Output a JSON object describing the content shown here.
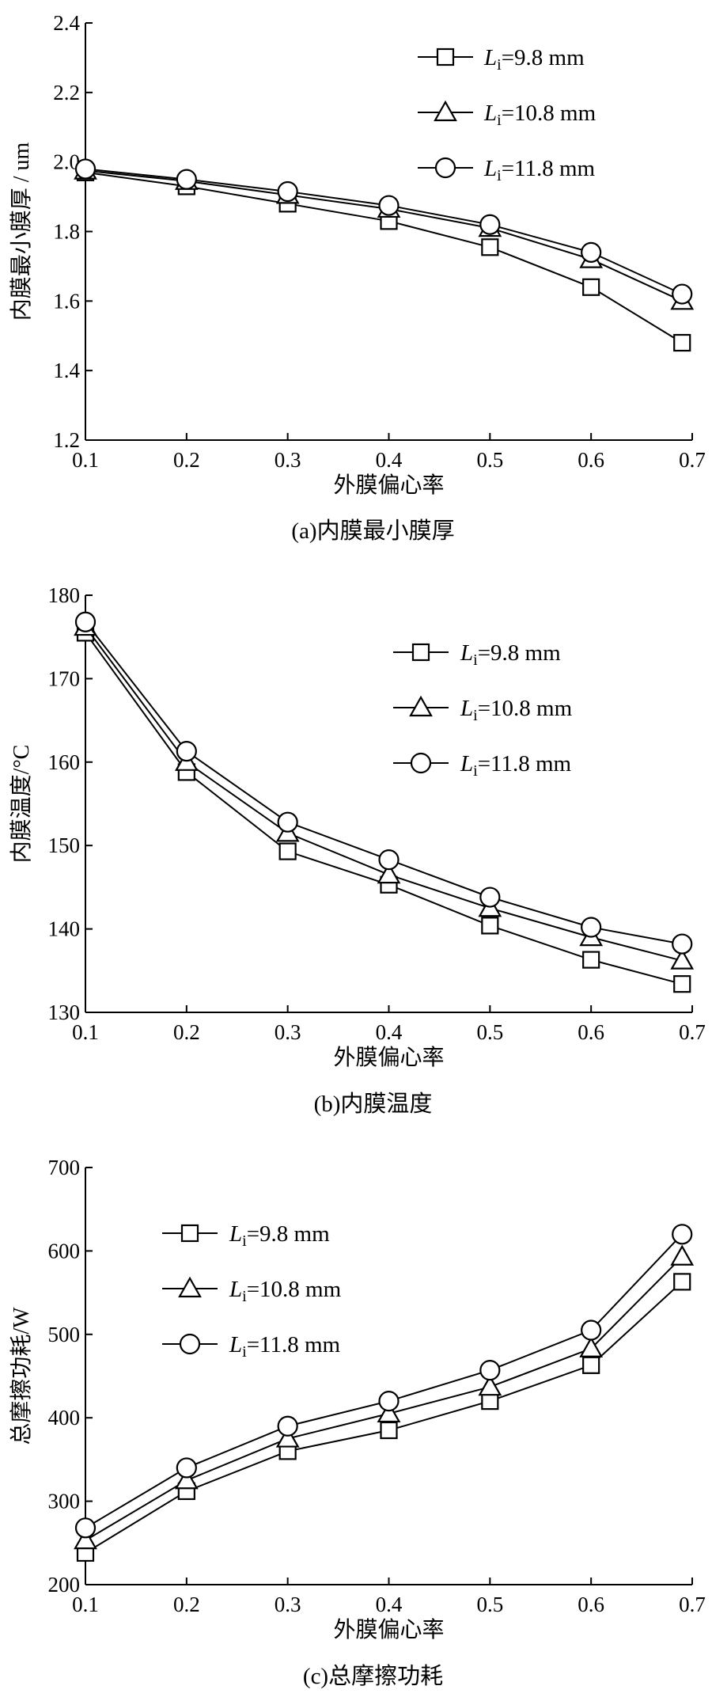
{
  "chart_data": [
    {
      "type": "line",
      "caption": "(a)内膜最小膜厚",
      "xlabel": "外膜偏心率",
      "ylabel": "内膜最小膜厚 / um",
      "xlim": [
        0.1,
        0.7
      ],
      "ylim": [
        1.2,
        2.4
      ],
      "xticks": [
        0.1,
        0.2,
        0.3,
        0.4,
        0.5,
        0.6,
        0.7
      ],
      "xtick_labels": [
        "0.1",
        "0.2",
        "0.3",
        "0.4",
        "0.5",
        "0.6",
        "0.7"
      ],
      "yticks": [
        1.2,
        1.4,
        1.6,
        1.8,
        2.0,
        2.2,
        2.4
      ],
      "ytick_labels": [
        "1.2",
        "1.4",
        "1.6",
        "1.8",
        "2.0",
        "2.2",
        "2.4"
      ],
      "x": [
        0.1,
        0.2,
        0.3,
        0.4,
        0.5,
        0.6,
        0.69
      ],
      "legend_position": "top-right",
      "grid": false,
      "series": [
        {
          "name": "Li=9.8 mm",
          "label_main": "L",
          "label_sub": "i",
          "label_rest": "=9.8 mm",
          "marker": "square",
          "values": [
            1.97,
            1.93,
            1.88,
            1.83,
            1.755,
            1.64,
            1.48
          ]
        },
        {
          "name": "Li=10.8 mm",
          "label_main": "L",
          "label_sub": "i",
          "label_rest": "=10.8 mm",
          "marker": "triangle",
          "values": [
            1.975,
            1.945,
            1.905,
            1.865,
            1.81,
            1.72,
            1.6
          ]
        },
        {
          "name": "Li=11.8 mm",
          "label_main": "L",
          "label_sub": "i",
          "label_rest": "=11.8 mm",
          "marker": "circle",
          "values": [
            1.98,
            1.95,
            1.915,
            1.875,
            1.82,
            1.74,
            1.62
          ]
        }
      ]
    },
    {
      "type": "line",
      "caption": "(b)内膜温度",
      "xlabel": "外膜偏心率",
      "ylabel": "内膜温度/°C",
      "xlim": [
        0.1,
        0.7
      ],
      "ylim": [
        130,
        180
      ],
      "xticks": [
        0.1,
        0.2,
        0.3,
        0.4,
        0.5,
        0.6,
        0.7
      ],
      "xtick_labels": [
        "0.1",
        "0.2",
        "0.3",
        "0.4",
        "0.5",
        "0.6",
        "0.7"
      ],
      "yticks": [
        130,
        140,
        150,
        160,
        170,
        180
      ],
      "ytick_labels": [
        "130",
        "140",
        "150",
        "160",
        "170",
        "180"
      ],
      "x": [
        0.1,
        0.2,
        0.3,
        0.4,
        0.5,
        0.6,
        0.69
      ],
      "legend_position": "top-right",
      "grid": false,
      "series": [
        {
          "name": "Li=9.8 mm",
          "label_main": "L",
          "label_sub": "i",
          "label_rest": "=9.8 mm",
          "marker": "square",
          "values": [
            175.5,
            158.8,
            149.3,
            145.3,
            140.4,
            136.3,
            133.4
          ]
        },
        {
          "name": "Li=10.8 mm",
          "label_main": "L",
          "label_sub": "i",
          "label_rest": "=10.8 mm",
          "marker": "triangle",
          "values": [
            176.2,
            160.0,
            151.5,
            146.5,
            142.5,
            139.0,
            136.2
          ]
        },
        {
          "name": "Li=11.8 mm",
          "label_main": "L",
          "label_sub": "i",
          "label_rest": "=11.8 mm",
          "marker": "circle",
          "values": [
            176.8,
            161.3,
            152.8,
            148.3,
            143.8,
            140.2,
            138.2
          ]
        }
      ]
    },
    {
      "type": "line",
      "caption": "(c)总摩擦功耗",
      "xlabel": "外膜偏心率",
      "ylabel": "总摩擦功耗/W",
      "xlim": [
        0.1,
        0.7
      ],
      "ylim": [
        200,
        700
      ],
      "xticks": [
        0.1,
        0.2,
        0.3,
        0.4,
        0.5,
        0.6,
        0.7
      ],
      "xtick_labels": [
        "0.1",
        "0.2",
        "0.3",
        "0.4",
        "0.5",
        "0.6",
        "0.7"
      ],
      "yticks": [
        200,
        300,
        400,
        500,
        600,
        700
      ],
      "ytick_labels": [
        "200",
        "300",
        "400",
        "500",
        "600",
        "700"
      ],
      "x": [
        0.1,
        0.2,
        0.3,
        0.4,
        0.5,
        0.6,
        0.69
      ],
      "legend_position": "top-left",
      "grid": false,
      "series": [
        {
          "name": "Li=9.8 mm",
          "label_main": "L",
          "label_sub": "i",
          "label_rest": "=9.8 mm",
          "marker": "square",
          "values": [
            238,
            312,
            360,
            385,
            420,
            463,
            563
          ]
        },
        {
          "name": "Li=10.8 mm",
          "label_main": "L",
          "label_sub": "i",
          "label_rest": "=10.8 mm",
          "marker": "triangle",
          "values": [
            253,
            325,
            375,
            405,
            437,
            483,
            593
          ]
        },
        {
          "name": "Li=11.8 mm",
          "label_main": "L",
          "label_sub": "i",
          "label_rest": "=11.8 mm",
          "marker": "circle",
          "values": [
            268,
            340,
            390,
            420,
            457,
            505,
            620
          ]
        }
      ]
    }
  ]
}
